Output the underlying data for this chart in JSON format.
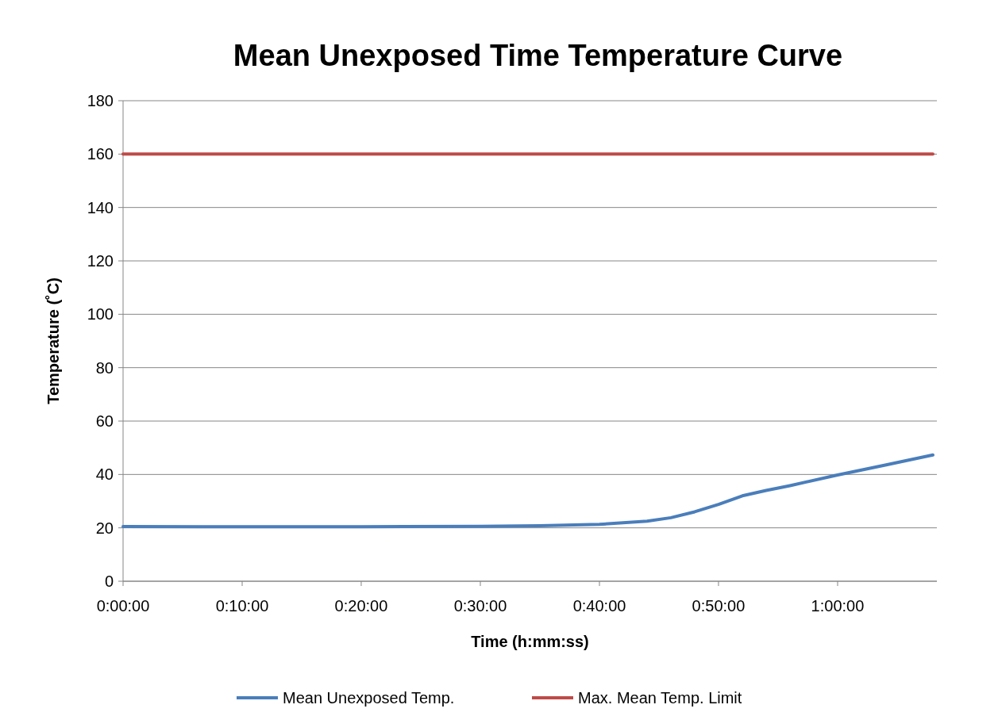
{
  "chart_data": {
    "type": "line",
    "title": "Mean Unexposed Time Temperature Curve",
    "xlabel": "Time (h:mm:ss)",
    "ylabel": "Temperature (˚C)",
    "xlim": [
      0,
      1.1389
    ],
    "xticks": [
      {
        "value": 0,
        "label": "0:00:00"
      },
      {
        "value": 0.1667,
        "label": "0:10:00"
      },
      {
        "value": 0.3333,
        "label": "0:20:00"
      },
      {
        "value": 0.5,
        "label": "0:30:00"
      },
      {
        "value": 0.6667,
        "label": "0:40:00"
      },
      {
        "value": 0.8333,
        "label": "0:50:00"
      },
      {
        "value": 1,
        "label": "1:00:00"
      }
    ],
    "ylim": [
      0,
      180
    ],
    "yticks": [
      0,
      20,
      40,
      60,
      80,
      100,
      120,
      140,
      160,
      180
    ],
    "grid": "y",
    "legend": "bottom",
    "marker": "none",
    "line_style": "solid",
    "series": [
      {
        "name": "Mean Unexposed Temp.",
        "color": "#4a7ebb",
        "x": [
          0,
          0.1667,
          0.3333,
          0.5,
          0.5833,
          0.6667,
          0.7333,
          0.7667,
          0.8,
          0.8333,
          0.8667,
          0.9,
          0.9333,
          1,
          1.0667,
          1.1333
        ],
        "values": [
          20.5,
          20.4,
          20.4,
          20.6,
          20.8,
          21.3,
          22.5,
          23.8,
          26,
          28.8,
          32,
          34,
          35.8,
          39.8,
          43.5,
          47.3
        ]
      },
      {
        "name": "Max. Mean Temp.  Limit",
        "color": "#be4b48",
        "x": [
          0,
          1.1333
        ],
        "values": [
          160,
          160
        ]
      }
    ]
  }
}
